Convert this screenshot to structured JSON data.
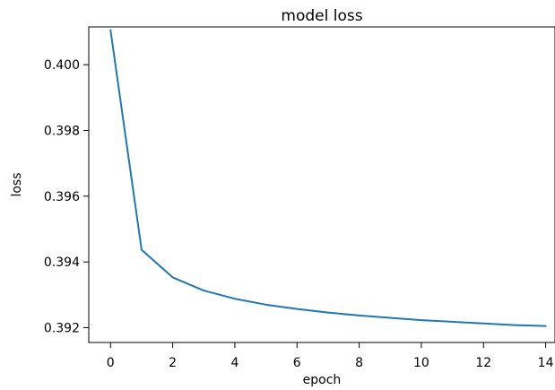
{
  "chart_data": {
    "type": "line",
    "title": "model loss",
    "xlabel": "epoch",
    "ylabel": "loss",
    "xlim": [
      -0.7,
      14.3
    ],
    "ylim": [
      0.39155,
      0.40115
    ],
    "xticks": [
      0,
      2,
      4,
      6,
      8,
      10,
      12,
      14
    ],
    "xtick_labels": [
      "0",
      "2",
      "4",
      "6",
      "8",
      "10",
      "12",
      "14"
    ],
    "yticks": [
      0.392,
      0.394,
      0.396,
      0.398,
      0.4
    ],
    "ytick_labels": [
      "0.392",
      "0.394",
      "0.396",
      "0.398",
      "0.400"
    ],
    "grid": false,
    "series": [
      {
        "color": "#1f77b4",
        "x": [
          0,
          1,
          2,
          3,
          4,
          5,
          6,
          7,
          8,
          9,
          10,
          11,
          12,
          13,
          14
        ],
        "y": [
          0.40105,
          0.39437,
          0.39353,
          0.39313,
          0.39288,
          0.3927,
          0.39257,
          0.39246,
          0.39237,
          0.3923,
          0.39223,
          0.39218,
          0.39213,
          0.39208,
          0.39205
        ]
      }
    ]
  }
}
